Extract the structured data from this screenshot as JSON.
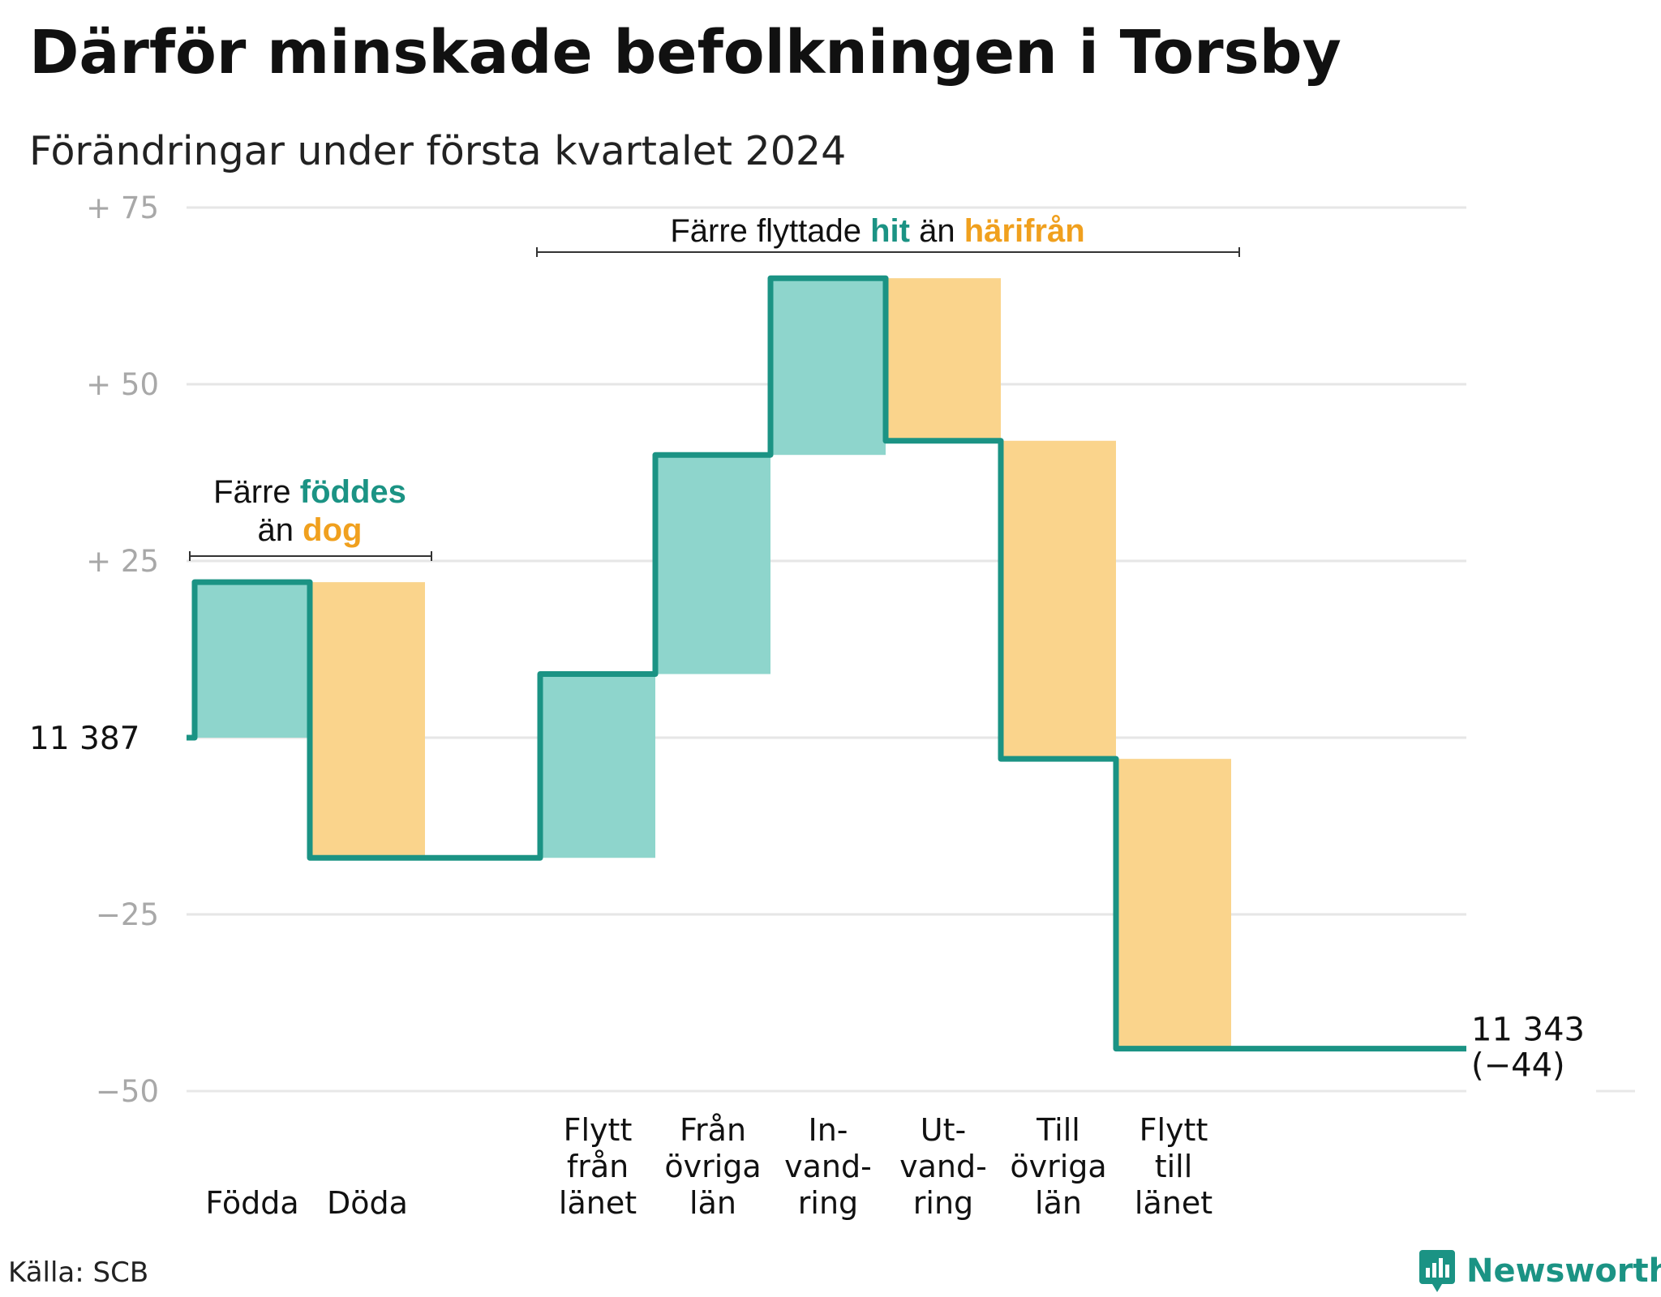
{
  "title": "Därför minskade befolkningen i Torsby",
  "subtitle": "Förändringar under första kvartalet 2024",
  "source": "Källa: SCB",
  "brand": {
    "name": "Newsworthy",
    "icon": "newsworthy-logo-icon"
  },
  "colors": {
    "increase": "#8ed5cc",
    "decrease": "#fad48c",
    "line": "#1b9384",
    "grid": "#e6e6e6",
    "axis_text": "#a8a8a8"
  },
  "chart_data": {
    "type": "waterfall",
    "start_value": 11387,
    "start_label": "11  387",
    "end_value": 11343,
    "end_label": "11 343",
    "end_change": "(−44)",
    "ylim": [
      -50,
      75
    ],
    "yticks": [
      {
        "value": 75,
        "label": "+  75"
      },
      {
        "value": 50,
        "label": "+  50"
      },
      {
        "value": 25,
        "label": "+  25"
      },
      {
        "value": 0,
        "label": ""
      },
      {
        "value": -25,
        "label": "−25"
      },
      {
        "value": -50,
        "label": "−50"
      }
    ],
    "steps": [
      {
        "label_lines": [
          "Födda"
        ],
        "value": 22,
        "kind": "in"
      },
      {
        "label_lines": [
          "Döda"
        ],
        "value": -39,
        "kind": "out"
      },
      {
        "label_lines": [],
        "value": 0,
        "kind": "gap"
      },
      {
        "label_lines": [
          "Flytt",
          "från",
          "länet"
        ],
        "value": 26,
        "kind": "in"
      },
      {
        "label_lines": [
          "Från",
          "övriga",
          "län"
        ],
        "value": 31,
        "kind": "in"
      },
      {
        "label_lines": [
          "In-",
          "vand-",
          "ring"
        ],
        "value": 25,
        "kind": "in"
      },
      {
        "label_lines": [
          "Ut-",
          "vand-",
          "ring"
        ],
        "value": -23,
        "kind": "out"
      },
      {
        "label_lines": [
          "Till",
          "övriga",
          "län"
        ],
        "value": -45,
        "kind": "out"
      },
      {
        "label_lines": [
          "Flytt",
          "till",
          "länet"
        ],
        "value": -41,
        "kind": "out"
      }
    ],
    "annotations": [
      {
        "id": "births",
        "parts": [
          [
            {
              "text": "Färre ",
              "color": "#111111",
              "bold": false
            },
            {
              "text": "föddes",
              "color": "#1b9384",
              "bold": true
            }
          ],
          [
            {
              "text": "än ",
              "color": "#111111",
              "bold": false
            },
            {
              "text": "dog",
              "color": "#f0a01e",
              "bold": true
            }
          ]
        ]
      },
      {
        "id": "migration",
        "parts": [
          [
            {
              "text": "Färre flyttade ",
              "color": "#111111",
              "bold": false
            },
            {
              "text": "hit",
              "color": "#1b9384",
              "bold": true
            },
            {
              "text": "  än ",
              "color": "#111111",
              "bold": false
            },
            {
              "text": "härifrån",
              "color": "#f0a01e",
              "bold": true
            }
          ]
        ]
      }
    ]
  }
}
